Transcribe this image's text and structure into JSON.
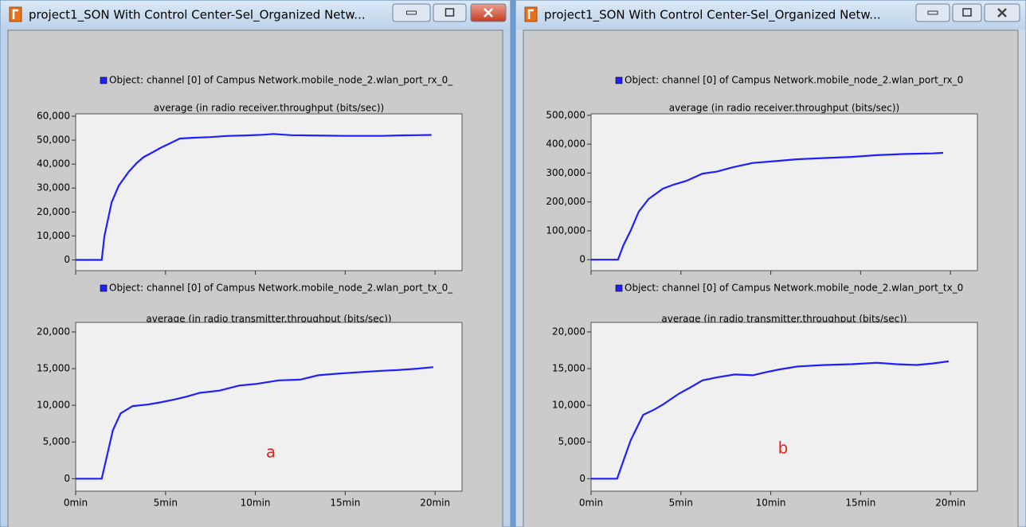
{
  "windows": [
    {
      "title": "project1_SON With Control Center-Sel_Organized Netw...",
      "annotation": "a",
      "panels": [
        {
          "legend": "Object: channel [0] of Campus Network.mobile_node_2.wlan_port_rx_0_",
          "title": "average (in radio receiver.throughput (bits/sec))",
          "xlim": [
            0,
            21.5
          ],
          "xticks": [
            0,
            5,
            10,
            15,
            20
          ],
          "ylim": [
            -4500,
            61000
          ],
          "yticks": [
            0,
            {
              "value": 10000,
              "label": "10,000"
            },
            {
              "value": 20000,
              "label": "20,000"
            },
            {
              "value": 30000,
              "label": "30,000"
            },
            {
              "value": 40000,
              "label": "40,000"
            },
            {
              "value": 50000,
              "label": "50,000"
            },
            {
              "value": 60000,
              "label": "60,000"
            }
          ],
          "color": "#1f1fff",
          "x": [
            0,
            1.45,
            1.6,
            2.0,
            2.4,
            2.95,
            3.4,
            3.8,
            4.3,
            4.7,
            5.2,
            5.8,
            6.5,
            7.5,
            8.5,
            9.5,
            10.5,
            11,
            12,
            13,
            14,
            15,
            16,
            17,
            18,
            19,
            19.8
          ],
          "values": [
            0,
            0,
            10000,
            24000,
            31000,
            36750,
            40500,
            43000,
            45000,
            46700,
            48500,
            50700,
            51000,
            51300,
            51800,
            52000,
            52300,
            52600,
            52100,
            52000,
            51900,
            51800,
            51800,
            51800,
            52000,
            52100,
            52200
          ]
        },
        {
          "legend": "Object: channel [0] of Campus Network.mobile_node_2.wlan_port_tx_0_",
          "title": "average (in radio transmitter.throughput (bits/sec))",
          "xlim": [
            0,
            21.5
          ],
          "xticks": [
            {
              "value": 0,
              "label": "0min"
            },
            {
              "value": 5,
              "label": "5min"
            },
            {
              "value": 10,
              "label": "10min"
            },
            {
              "value": 15,
              "label": "15min"
            },
            {
              "value": 20,
              "label": "20min"
            }
          ],
          "ylim": [
            -1700,
            21300
          ],
          "yticks": [
            0,
            {
              "value": 5000,
              "label": "5,000"
            },
            {
              "value": 10000,
              "label": "10,000"
            },
            {
              "value": 15000,
              "label": "15,000"
            },
            {
              "value": 20000,
              "label": "20,000"
            }
          ],
          "color": "#1f1fff",
          "x": [
            0,
            1.45,
            2.07,
            2.5,
            3.17,
            4,
            4.7,
            5.5,
            6.2,
            6.9,
            8,
            9.1,
            10,
            11.3,
            12.5,
            13.5,
            14.5,
            15.7,
            17,
            17.9,
            19,
            19.9
          ],
          "values": [
            0,
            0,
            6600,
            8900,
            9900,
            10100,
            10400,
            10800,
            11200,
            11700,
            12000,
            12700,
            12900,
            13400,
            13500,
            14100,
            14300,
            14500,
            14700,
            14800,
            15000,
            15200
          ]
        }
      ]
    },
    {
      "title": "project1_SON With Control Center-Sel_Organized Netw...",
      "annotation": "b",
      "panels": [
        {
          "legend": "Object: channel [0] of Campus Network.mobile_node_2.wlan_port_rx_0",
          "title": "average (in radio receiver.throughput (bits/sec))",
          "xlim": [
            0,
            21.5
          ],
          "xticks": [
            0,
            5,
            10,
            15,
            20
          ],
          "ylim": [
            -38000,
            505000
          ],
          "yticks": [
            0,
            {
              "value": 100000,
              "label": "100,000"
            },
            {
              "value": 200000,
              "label": "200,000"
            },
            {
              "value": 300000,
              "label": "300,000"
            },
            {
              "value": 400000,
              "label": "400,000"
            },
            {
              "value": 500000,
              "label": "500,000"
            }
          ],
          "color": "#1f1fff",
          "x": [
            0,
            1.5,
            1.8,
            2.2,
            2.65,
            3.2,
            4,
            4.6,
            5.3,
            6.2,
            7,
            7.9,
            9,
            10,
            11.5,
            13,
            14.5,
            15.9,
            17.5,
            19,
            19.6
          ],
          "values": [
            0,
            0,
            50000,
            100000,
            166000,
            210000,
            246000,
            260000,
            273000,
            298000,
            305000,
            320000,
            335000,
            340000,
            348000,
            352000,
            356000,
            362000,
            366000,
            368000,
            370000
          ]
        },
        {
          "legend": "Object: channel [0] of Campus Network.mobile_node_2.wlan_port_tx_0",
          "title": "average (in radio transmitter.throughput (bits/sec))",
          "xlim": [
            0,
            21.5
          ],
          "xticks": [
            {
              "value": 0,
              "label": "0min"
            },
            {
              "value": 5,
              "label": "5min"
            },
            {
              "value": 10,
              "label": "10min"
            },
            {
              "value": 15,
              "label": "15min"
            },
            {
              "value": 20,
              "label": "20min"
            }
          ],
          "ylim": [
            -1700,
            21300
          ],
          "yticks": [
            0,
            {
              "value": 5000,
              "label": "5,000"
            },
            {
              "value": 10000,
              "label": "10,000"
            },
            {
              "value": 15000,
              "label": "15,000"
            },
            {
              "value": 20000,
              "label": "20,000"
            }
          ],
          "color": "#1f1fff",
          "x": [
            0,
            1.45,
            2.2,
            2.9,
            3.5,
            4,
            4.9,
            5.5,
            6.2,
            7,
            8,
            9,
            9.7,
            10.5,
            11.5,
            13,
            14.5,
            15.9,
            17,
            18.1,
            19,
            19.9
          ],
          "values": [
            0,
            0,
            5200,
            8700,
            9400,
            10100,
            11600,
            12400,
            13400,
            13800,
            14200,
            14100,
            14500,
            14900,
            15300,
            15500,
            15600,
            15800,
            15600,
            15500,
            15700,
            16000
          ]
        }
      ]
    }
  ]
}
